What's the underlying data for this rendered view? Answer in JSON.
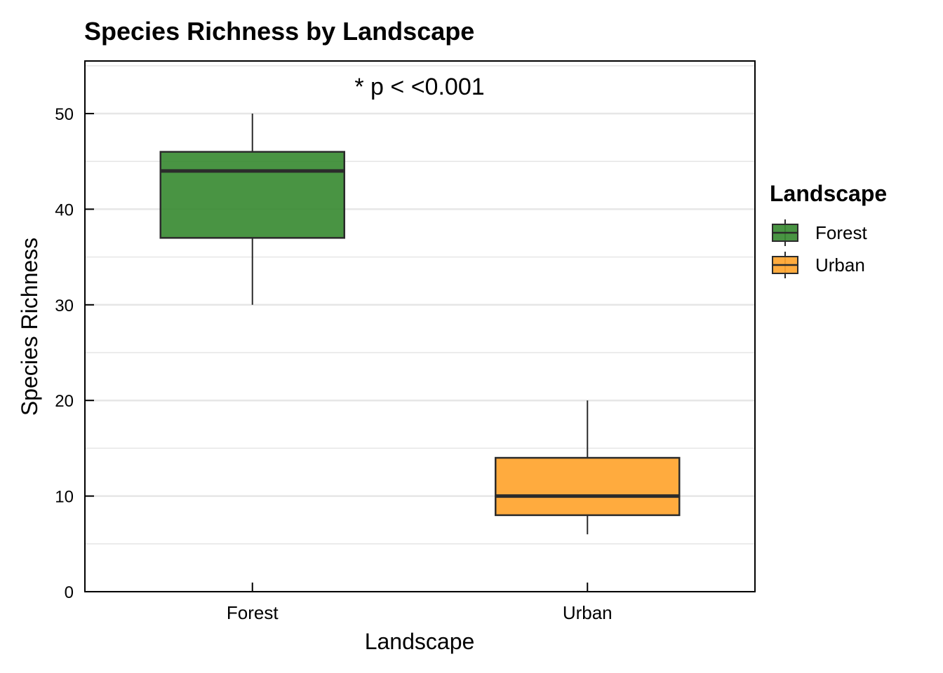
{
  "chart_data": {
    "type": "boxplot",
    "title": "Species Richness by Landscape",
    "xlabel": "Landscape",
    "ylabel": "Species Richness",
    "annotation": "* p < <0.001",
    "categories": [
      "Forest",
      "Urban"
    ],
    "boxes": [
      {
        "category": "Forest",
        "min": 30,
        "q1": 37,
        "median": 44,
        "q3": 46,
        "max": 50
      },
      {
        "category": "Urban",
        "min": 6,
        "q1": 8,
        "median": 10,
        "q3": 14,
        "max": 20
      }
    ],
    "ylim": [
      0,
      55.5
    ],
    "yticks": [
      0,
      10,
      20,
      30,
      40,
      50
    ],
    "grid": true,
    "legend": {
      "title": "Landscape",
      "placement": "right",
      "entries": [
        "Forest",
        "Urban"
      ]
    },
    "colors": {
      "Forest": "#3a8b33",
      "Urban": "#ffa42e",
      "box_stroke": "#2b2b2b",
      "grid": "#e6e6e6"
    }
  }
}
